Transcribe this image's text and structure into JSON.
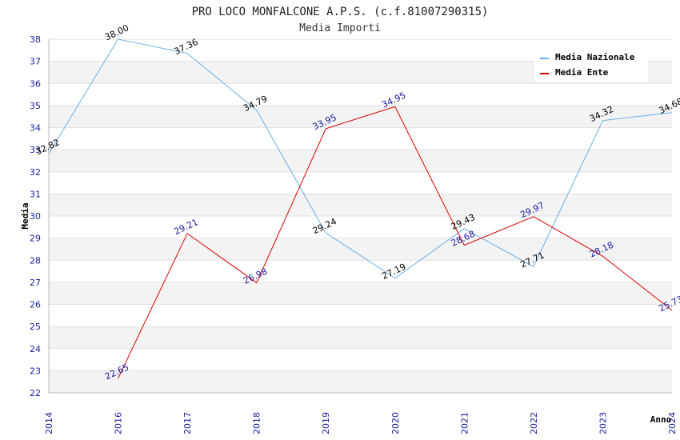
{
  "chart_data": {
    "type": "line",
    "title": "PRO LOCO MONFALCONE A.P.S. (c.f.81007290315)",
    "subtitle": "Media Importi",
    "xlabel": "Anno",
    "ylabel": "Media",
    "ylim": [
      22,
      38
    ],
    "yticks": [
      "22",
      "23",
      "24",
      "25",
      "26",
      "27",
      "28",
      "29",
      "30",
      "31",
      "32",
      "33",
      "34",
      "35",
      "36",
      "37",
      "38"
    ],
    "categories": [
      "2014",
      "2016",
      "2017",
      "2018",
      "2019",
      "2020",
      "2021",
      "2022",
      "2023",
      "2024"
    ],
    "grid": true,
    "legend_position": "top-right",
    "series": [
      {
        "name": "Media Nazionale",
        "color": "#6aaee8",
        "label_color": "#000000",
        "values": [
          32.82,
          38.0,
          37.36,
          34.79,
          29.24,
          27.19,
          29.43,
          27.71,
          34.32,
          34.68
        ],
        "labels": [
          "32.82",
          "38.00",
          "37.36",
          "34.79",
          "29.24",
          "27.19",
          "29.43",
          "27.71",
          "34.32",
          "34.68"
        ]
      },
      {
        "name": "Media Ente",
        "color": "#dd0000",
        "label_color": "#1a1aa0",
        "values": [
          null,
          22.65,
          29.21,
          26.98,
          33.95,
          34.95,
          28.68,
          29.97,
          28.18,
          25.73
        ],
        "labels": [
          null,
          "22.65",
          "29.21",
          "26.98",
          "33.95",
          "34.95",
          "28.68",
          "29.97",
          "28.18",
          "25.73"
        ]
      }
    ]
  }
}
